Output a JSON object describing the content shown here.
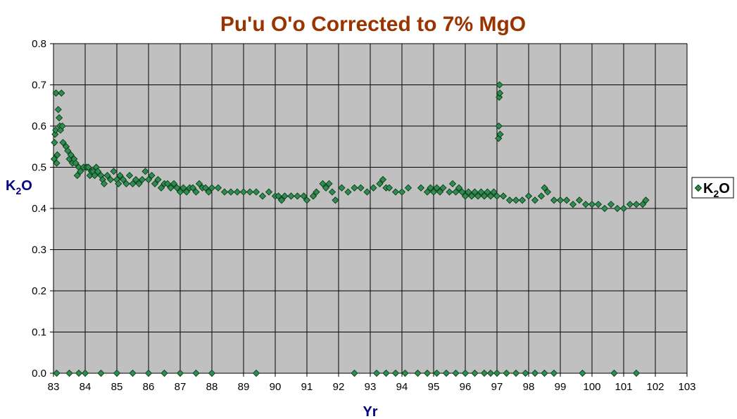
{
  "chart_data": {
    "type": "scatter",
    "title": "Pu'u O'o Corrected to 7% MgO",
    "xlabel": "Yr",
    "ylabel_main": "K",
    "ylabel_sub": "2",
    "ylabel_tail": "O",
    "xlim": [
      83,
      103
    ],
    "ylim": [
      0.0,
      0.8
    ],
    "x_ticks": [
      "83",
      "84",
      "85",
      "86",
      "87",
      "88",
      "89",
      "90",
      "91",
      "92",
      "93",
      "94",
      "95",
      "96",
      "97",
      "98",
      "99",
      "100",
      "101",
      "102",
      "103"
    ],
    "y_ticks": [
      "0.0",
      "0.1",
      "0.2",
      "0.3",
      "0.4",
      "0.5",
      "0.6",
      "0.7",
      "0.8"
    ],
    "grid": true,
    "legend_position": "right",
    "colors": {
      "title": "#993300",
      "axis_title": "#000080",
      "plot_bg": "#c0c0c0",
      "marker_fill": "#2e8b57",
      "marker_stroke": "#003300",
      "grid": "#000000"
    },
    "series": [
      {
        "name_main": "K",
        "name_sub": "2",
        "name_tail": "O",
        "points": [
          [
            83.02,
            0.52
          ],
          [
            83.03,
            0.56
          ],
          [
            83.05,
            0.58
          ],
          [
            83.07,
            0.59
          ],
          [
            83.08,
            0.68
          ],
          [
            83.1,
            0.51
          ],
          [
            83.12,
            0.53
          ],
          [
            83.15,
            0.64
          ],
          [
            83.18,
            0.62
          ],
          [
            83.2,
            0.6
          ],
          [
            83.22,
            0.59
          ],
          [
            83.25,
            0.68
          ],
          [
            83.28,
            0.6
          ],
          [
            83.3,
            0.56
          ],
          [
            83.4,
            0.55
          ],
          [
            83.45,
            0.54
          ],
          [
            83.5,
            0.52
          ],
          [
            83.55,
            0.53
          ],
          [
            83.6,
            0.51
          ],
          [
            83.65,
            0.52
          ],
          [
            83.7,
            0.51
          ],
          [
            83.75,
            0.48
          ],
          [
            83.8,
            0.5
          ],
          [
            83.85,
            0.49
          ],
          [
            83.95,
            0.5
          ],
          [
            84.05,
            0.5
          ],
          [
            84.1,
            0.5
          ],
          [
            84.15,
            0.48
          ],
          [
            84.2,
            0.49
          ],
          [
            84.25,
            0.49
          ],
          [
            84.3,
            0.48
          ],
          [
            84.35,
            0.5
          ],
          [
            84.4,
            0.49
          ],
          [
            84.5,
            0.48
          ],
          [
            84.55,
            0.47
          ],
          [
            84.6,
            0.46
          ],
          [
            84.7,
            0.48
          ],
          [
            84.8,
            0.47
          ],
          [
            84.9,
            0.49
          ],
          [
            85.0,
            0.47
          ],
          [
            85.05,
            0.46
          ],
          [
            85.1,
            0.48
          ],
          [
            85.2,
            0.47
          ],
          [
            85.3,
            0.46
          ],
          [
            85.4,
            0.48
          ],
          [
            85.5,
            0.46
          ],
          [
            85.6,
            0.47
          ],
          [
            85.7,
            0.46
          ],
          [
            85.8,
            0.47
          ],
          [
            85.9,
            0.49
          ],
          [
            86.0,
            0.47
          ],
          [
            86.1,
            0.48
          ],
          [
            86.2,
            0.46
          ],
          [
            86.3,
            0.47
          ],
          [
            86.4,
            0.45
          ],
          [
            86.5,
            0.46
          ],
          [
            86.6,
            0.46
          ],
          [
            86.7,
            0.45
          ],
          [
            86.8,
            0.46
          ],
          [
            86.9,
            0.45
          ],
          [
            87.0,
            0.44
          ],
          [
            87.1,
            0.45
          ],
          [
            87.2,
            0.44
          ],
          [
            87.3,
            0.45
          ],
          [
            87.4,
            0.45
          ],
          [
            87.5,
            0.44
          ],
          [
            87.6,
            0.46
          ],
          [
            87.7,
            0.45
          ],
          [
            87.8,
            0.45
          ],
          [
            87.9,
            0.44
          ],
          [
            88.0,
            0.45
          ],
          [
            88.2,
            0.45
          ],
          [
            88.4,
            0.44
          ],
          [
            88.6,
            0.44
          ],
          [
            88.8,
            0.44
          ],
          [
            89.0,
            0.44
          ],
          [
            89.2,
            0.44
          ],
          [
            89.4,
            0.44
          ],
          [
            89.6,
            0.43
          ],
          [
            89.8,
            0.44
          ],
          [
            90.0,
            0.43
          ],
          [
            90.1,
            0.43
          ],
          [
            90.2,
            0.42
          ],
          [
            90.3,
            0.43
          ],
          [
            90.5,
            0.43
          ],
          [
            90.7,
            0.43
          ],
          [
            90.9,
            0.43
          ],
          [
            91.0,
            0.42
          ],
          [
            91.2,
            0.43
          ],
          [
            91.3,
            0.44
          ],
          [
            91.5,
            0.46
          ],
          [
            91.6,
            0.45
          ],
          [
            91.7,
            0.46
          ],
          [
            91.8,
            0.44
          ],
          [
            91.9,
            0.42
          ],
          [
            92.1,
            0.45
          ],
          [
            92.3,
            0.44
          ],
          [
            92.5,
            0.45
          ],
          [
            92.7,
            0.45
          ],
          [
            92.9,
            0.44
          ],
          [
            93.1,
            0.45
          ],
          [
            93.3,
            0.46
          ],
          [
            93.4,
            0.47
          ],
          [
            93.5,
            0.45
          ],
          [
            93.6,
            0.45
          ],
          [
            93.8,
            0.44
          ],
          [
            94.0,
            0.44
          ],
          [
            94.2,
            0.45
          ],
          [
            94.6,
            0.45
          ],
          [
            94.8,
            0.44
          ],
          [
            94.9,
            0.45
          ],
          [
            95.0,
            0.44
          ],
          [
            95.1,
            0.45
          ],
          [
            95.2,
            0.44
          ],
          [
            95.3,
            0.45
          ],
          [
            95.5,
            0.44
          ],
          [
            95.6,
            0.46
          ],
          [
            95.7,
            0.44
          ],
          [
            95.8,
            0.45
          ],
          [
            95.9,
            0.44
          ],
          [
            96.0,
            0.43
          ],
          [
            96.1,
            0.44
          ],
          [
            96.2,
            0.43
          ],
          [
            96.3,
            0.44
          ],
          [
            96.4,
            0.43
          ],
          [
            96.5,
            0.44
          ],
          [
            96.6,
            0.43
          ],
          [
            96.7,
            0.44
          ],
          [
            96.8,
            0.43
          ],
          [
            96.9,
            0.44
          ],
          [
            97.0,
            0.43
          ],
          [
            97.05,
            0.57
          ],
          [
            97.06,
            0.6
          ],
          [
            97.07,
            0.67
          ],
          [
            97.08,
            0.7
          ],
          [
            97.09,
            0.68
          ],
          [
            97.1,
            0.58
          ],
          [
            97.2,
            0.43
          ],
          [
            97.4,
            0.42
          ],
          [
            97.6,
            0.42
          ],
          [
            97.8,
            0.42
          ],
          [
            98.0,
            0.43
          ],
          [
            98.2,
            0.42
          ],
          [
            98.4,
            0.43
          ],
          [
            98.5,
            0.45
          ],
          [
            98.6,
            0.44
          ],
          [
            98.8,
            0.42
          ],
          [
            99.0,
            0.42
          ],
          [
            99.2,
            0.42
          ],
          [
            99.4,
            0.41
          ],
          [
            99.6,
            0.42
          ],
          [
            99.8,
            0.41
          ],
          [
            100.0,
            0.41
          ],
          [
            100.2,
            0.41
          ],
          [
            100.4,
            0.4
          ],
          [
            100.6,
            0.41
          ],
          [
            100.8,
            0.4
          ],
          [
            101.0,
            0.4
          ],
          [
            101.2,
            0.41
          ],
          [
            101.4,
            0.41
          ],
          [
            101.6,
            0.41
          ],
          [
            101.7,
            0.42
          ],
          [
            83.1,
            0.0
          ],
          [
            83.5,
            0.0
          ],
          [
            83.8,
            0.0
          ],
          [
            84.0,
            0.0
          ],
          [
            84.5,
            0.0
          ],
          [
            85.0,
            0.0
          ],
          [
            85.5,
            0.0
          ],
          [
            86.0,
            0.0
          ],
          [
            86.5,
            0.0
          ],
          [
            87.0,
            0.0
          ],
          [
            87.5,
            0.0
          ],
          [
            88.0,
            0.0
          ],
          [
            89.4,
            0.0
          ],
          [
            92.5,
            0.0
          ],
          [
            93.2,
            0.0
          ],
          [
            93.5,
            0.0
          ],
          [
            93.8,
            0.0
          ],
          [
            94.1,
            0.0
          ],
          [
            94.5,
            0.0
          ],
          [
            94.8,
            0.0
          ],
          [
            95.1,
            0.0
          ],
          [
            95.4,
            0.0
          ],
          [
            95.7,
            0.0
          ],
          [
            96.0,
            0.0
          ],
          [
            96.3,
            0.0
          ],
          [
            96.6,
            0.0
          ],
          [
            96.8,
            0.0
          ],
          [
            97.0,
            0.0
          ],
          [
            97.3,
            0.0
          ],
          [
            97.6,
            0.0
          ],
          [
            97.9,
            0.0
          ],
          [
            98.2,
            0.0
          ],
          [
            98.5,
            0.0
          ],
          [
            98.8,
            0.0
          ],
          [
            99.7,
            0.0
          ],
          [
            100.7,
            0.0
          ],
          [
            101.4,
            0.0
          ]
        ]
      }
    ]
  }
}
